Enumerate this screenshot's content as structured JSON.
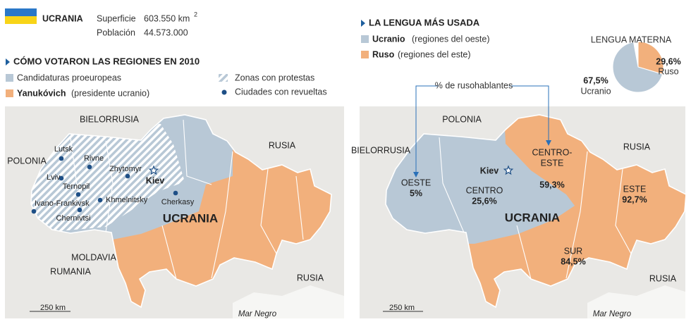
{
  "header": {
    "country": "UCRANIA",
    "area_label": "Superficie",
    "area_value": "603.550 km",
    "area_sup": "2",
    "population_label": "Población",
    "population_value": "44.573.000"
  },
  "left_map": {
    "title": "CÓMO VOTARON LAS REGIONES EN 2010",
    "legend": [
      {
        "label": "Candidaturas proeuropeas"
      },
      {
        "bold": "Yanukóvich",
        "label": "(presidente ucranio)"
      },
      {
        "label": "Zonas con protestas"
      },
      {
        "label": "Ciudades con revueltas"
      }
    ],
    "countries": [
      "BIELORRUSIA",
      "POLONIA",
      "RUSIA",
      "MOLDAVIA",
      "RUMANIA",
      "RUSIA"
    ],
    "country_name": "UCRANIA",
    "capital": "Kiev",
    "cities": [
      "Lutsk",
      "Rivne",
      "Lviv",
      "Ternopil",
      "Ivano-Frankivsk",
      "Chernivtsi",
      "Zhytomyr",
      "Khmelnitsky",
      "Cherkasy"
    ],
    "scale": "250 km",
    "sea": "Mar Negro"
  },
  "right_map": {
    "title": "LA LENGUA MÁS USADA",
    "legend": [
      {
        "bold": "Ucranio",
        "label": "(regiones del oeste)"
      },
      {
        "bold": "Ruso",
        "label": "(regiones del este)"
      }
    ],
    "annotation": "% de rusohablantes",
    "regions": [
      {
        "name": "OESTE",
        "value": "5%"
      },
      {
        "name": "CENTRO",
        "value": "25,6%"
      },
      {
        "name": "CENTRO-",
        "name2": "ESTE",
        "value": "59,3%"
      },
      {
        "name": "ESTE",
        "value": "92,7%"
      },
      {
        "name": "SUR",
        "value": "84,5%"
      }
    ],
    "countries": [
      "BIELORRUSIA",
      "POLONIA",
      "RUSIA",
      "RUSIA"
    ],
    "country_name": "UCRANIA",
    "capital": "Kiev",
    "scale": "250 km",
    "sea": "Mar Negro"
  },
  "chart_data": {
    "type": "pie",
    "title": "LENGUA MATERNA",
    "categories": [
      "Ruso",
      "Ucranio"
    ],
    "values": [
      29.6,
      67.5
    ],
    "value_labels": [
      "29,6%",
      "67,5%"
    ],
    "colors": [
      "#f2b07c",
      "#b8c8d6"
    ]
  }
}
